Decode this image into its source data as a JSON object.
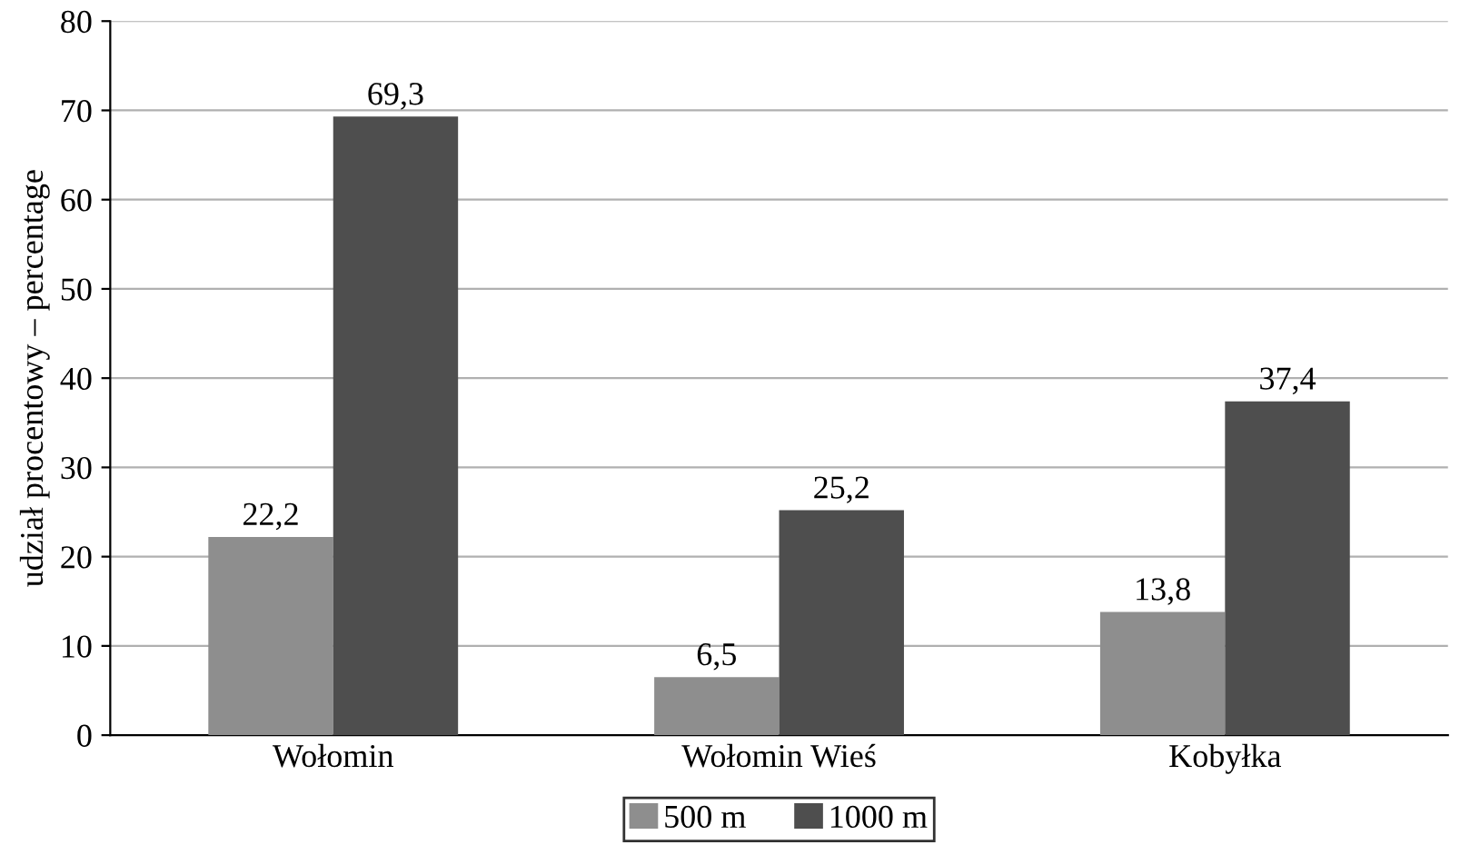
{
  "chart_data": {
    "type": "bar",
    "ylabel": "udział procentowy – percentage",
    "categories": [
      "Wołomin",
      "Wołomin Wieś",
      "Kobyłka"
    ],
    "series": [
      {
        "name": "500 m",
        "color": "#8e8e8e",
        "values": [
          22.2,
          6.5,
          13.8
        ],
        "value_labels": [
          "22,2",
          "6,5",
          "13,8"
        ]
      },
      {
        "name": "1000 m",
        "color": "#4e4e4e",
        "values": [
          69.3,
          25.2,
          37.4
        ],
        "value_labels": [
          "69,3",
          "25,2",
          "37,4"
        ]
      }
    ],
    "ylim": [
      0,
      80
    ],
    "yticks": [
      0,
      10,
      20,
      30,
      40,
      50,
      60,
      70,
      80
    ],
    "grid": "y",
    "legend": "bottom"
  }
}
